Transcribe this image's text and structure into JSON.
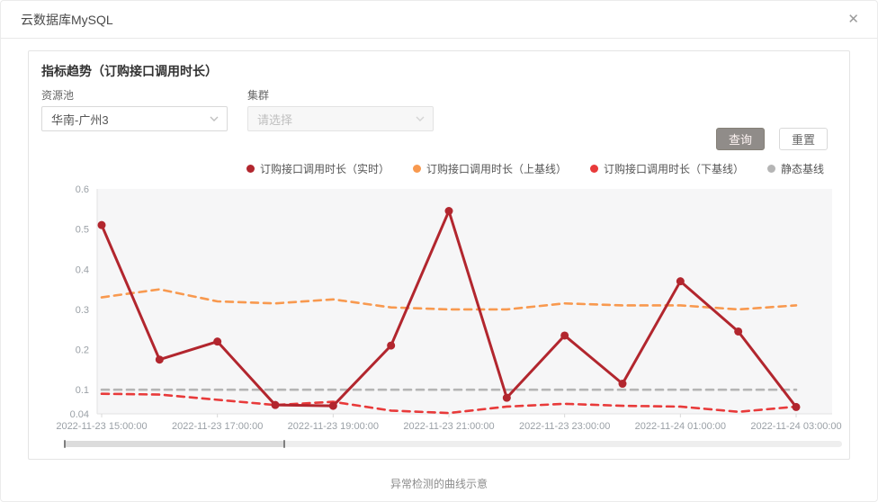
{
  "window": {
    "title": "云数据库MySQL",
    "close_icon": "✕"
  },
  "panel": {
    "heading": "指标趋势（订购接口调用时长）",
    "filters": [
      {
        "label": "资源池",
        "value": "华南-广州3",
        "disabled": false
      },
      {
        "label": "集群",
        "placeholder": "请选择",
        "disabled": true
      }
    ],
    "buttons": {
      "query": "查询",
      "reset": "重置"
    }
  },
  "caption": "异常检测的曲线示意",
  "colors": {
    "realtime": "#b2262e",
    "upper_baseline": "#f8994f",
    "lower_baseline": "#e83a3a",
    "static_baseline": "#b5b5b5",
    "axis_text": "#9aa0a6",
    "plot_bg": "#f6f6f7"
  },
  "scrollbar": {
    "thumb_start_pct": 0,
    "thumb_width_pct": 28.4
  },
  "chart_data": {
    "type": "line",
    "title": "指标趋势（订购接口调用时长）",
    "x": [
      "2022-11-23 15:00:00",
      "2022-11-23 16:00:00",
      "2022-11-23 17:00:00",
      "2022-11-23 18:00:00",
      "2022-11-23 19:00:00",
      "2022-11-23 20:00:00",
      "2022-11-23 21:00:00",
      "2022-11-23 22:00:00",
      "2022-11-23 23:00:00",
      "2022-11-24 00:00:00",
      "2022-11-24 01:00:00",
      "2022-11-24 02:00:00",
      "2022-11-24 03:00:00"
    ],
    "x_tick_every": 2,
    "ylim": [
      0.04,
      0.6
    ],
    "yticks": [
      "0.6",
      "0.5",
      "0.4",
      "0.3",
      "0.2",
      "0.1",
      "0.04"
    ],
    "grid": false,
    "legend_position": "top-right",
    "series": [
      {
        "name": "订购接口调用时长（实时）",
        "color": "#b2262e",
        "style": "solid",
        "markers": true,
        "values": [
          0.51,
          0.175,
          0.22,
          0.062,
          0.06,
          0.21,
          0.545,
          0.08,
          0.235,
          0.115,
          0.37,
          0.245,
          0.057
        ]
      },
      {
        "name": "订购接口调用时长（上基线）",
        "color": "#f8994f",
        "style": "dashed",
        "markers": false,
        "values": [
          0.33,
          0.35,
          0.32,
          0.315,
          0.325,
          0.305,
          0.3,
          0.3,
          0.315,
          0.31,
          0.31,
          0.3,
          0.31
        ]
      },
      {
        "name": "订购接口调用时长（下基线）",
        "color": "#e83a3a",
        "style": "dashed",
        "markers": false,
        "values": [
          0.09,
          0.088,
          0.075,
          0.062,
          0.07,
          0.048,
          0.042,
          0.058,
          0.065,
          0.06,
          0.058,
          0.045,
          0.058
        ]
      },
      {
        "name": "静态基线",
        "color": "#b5b5b5",
        "style": "dashed",
        "markers": false,
        "values": [
          0.1,
          0.1,
          0.1,
          0.1,
          0.1,
          0.1,
          0.1,
          0.1,
          0.1,
          0.1,
          0.1,
          0.1,
          0.1
        ]
      }
    ]
  }
}
